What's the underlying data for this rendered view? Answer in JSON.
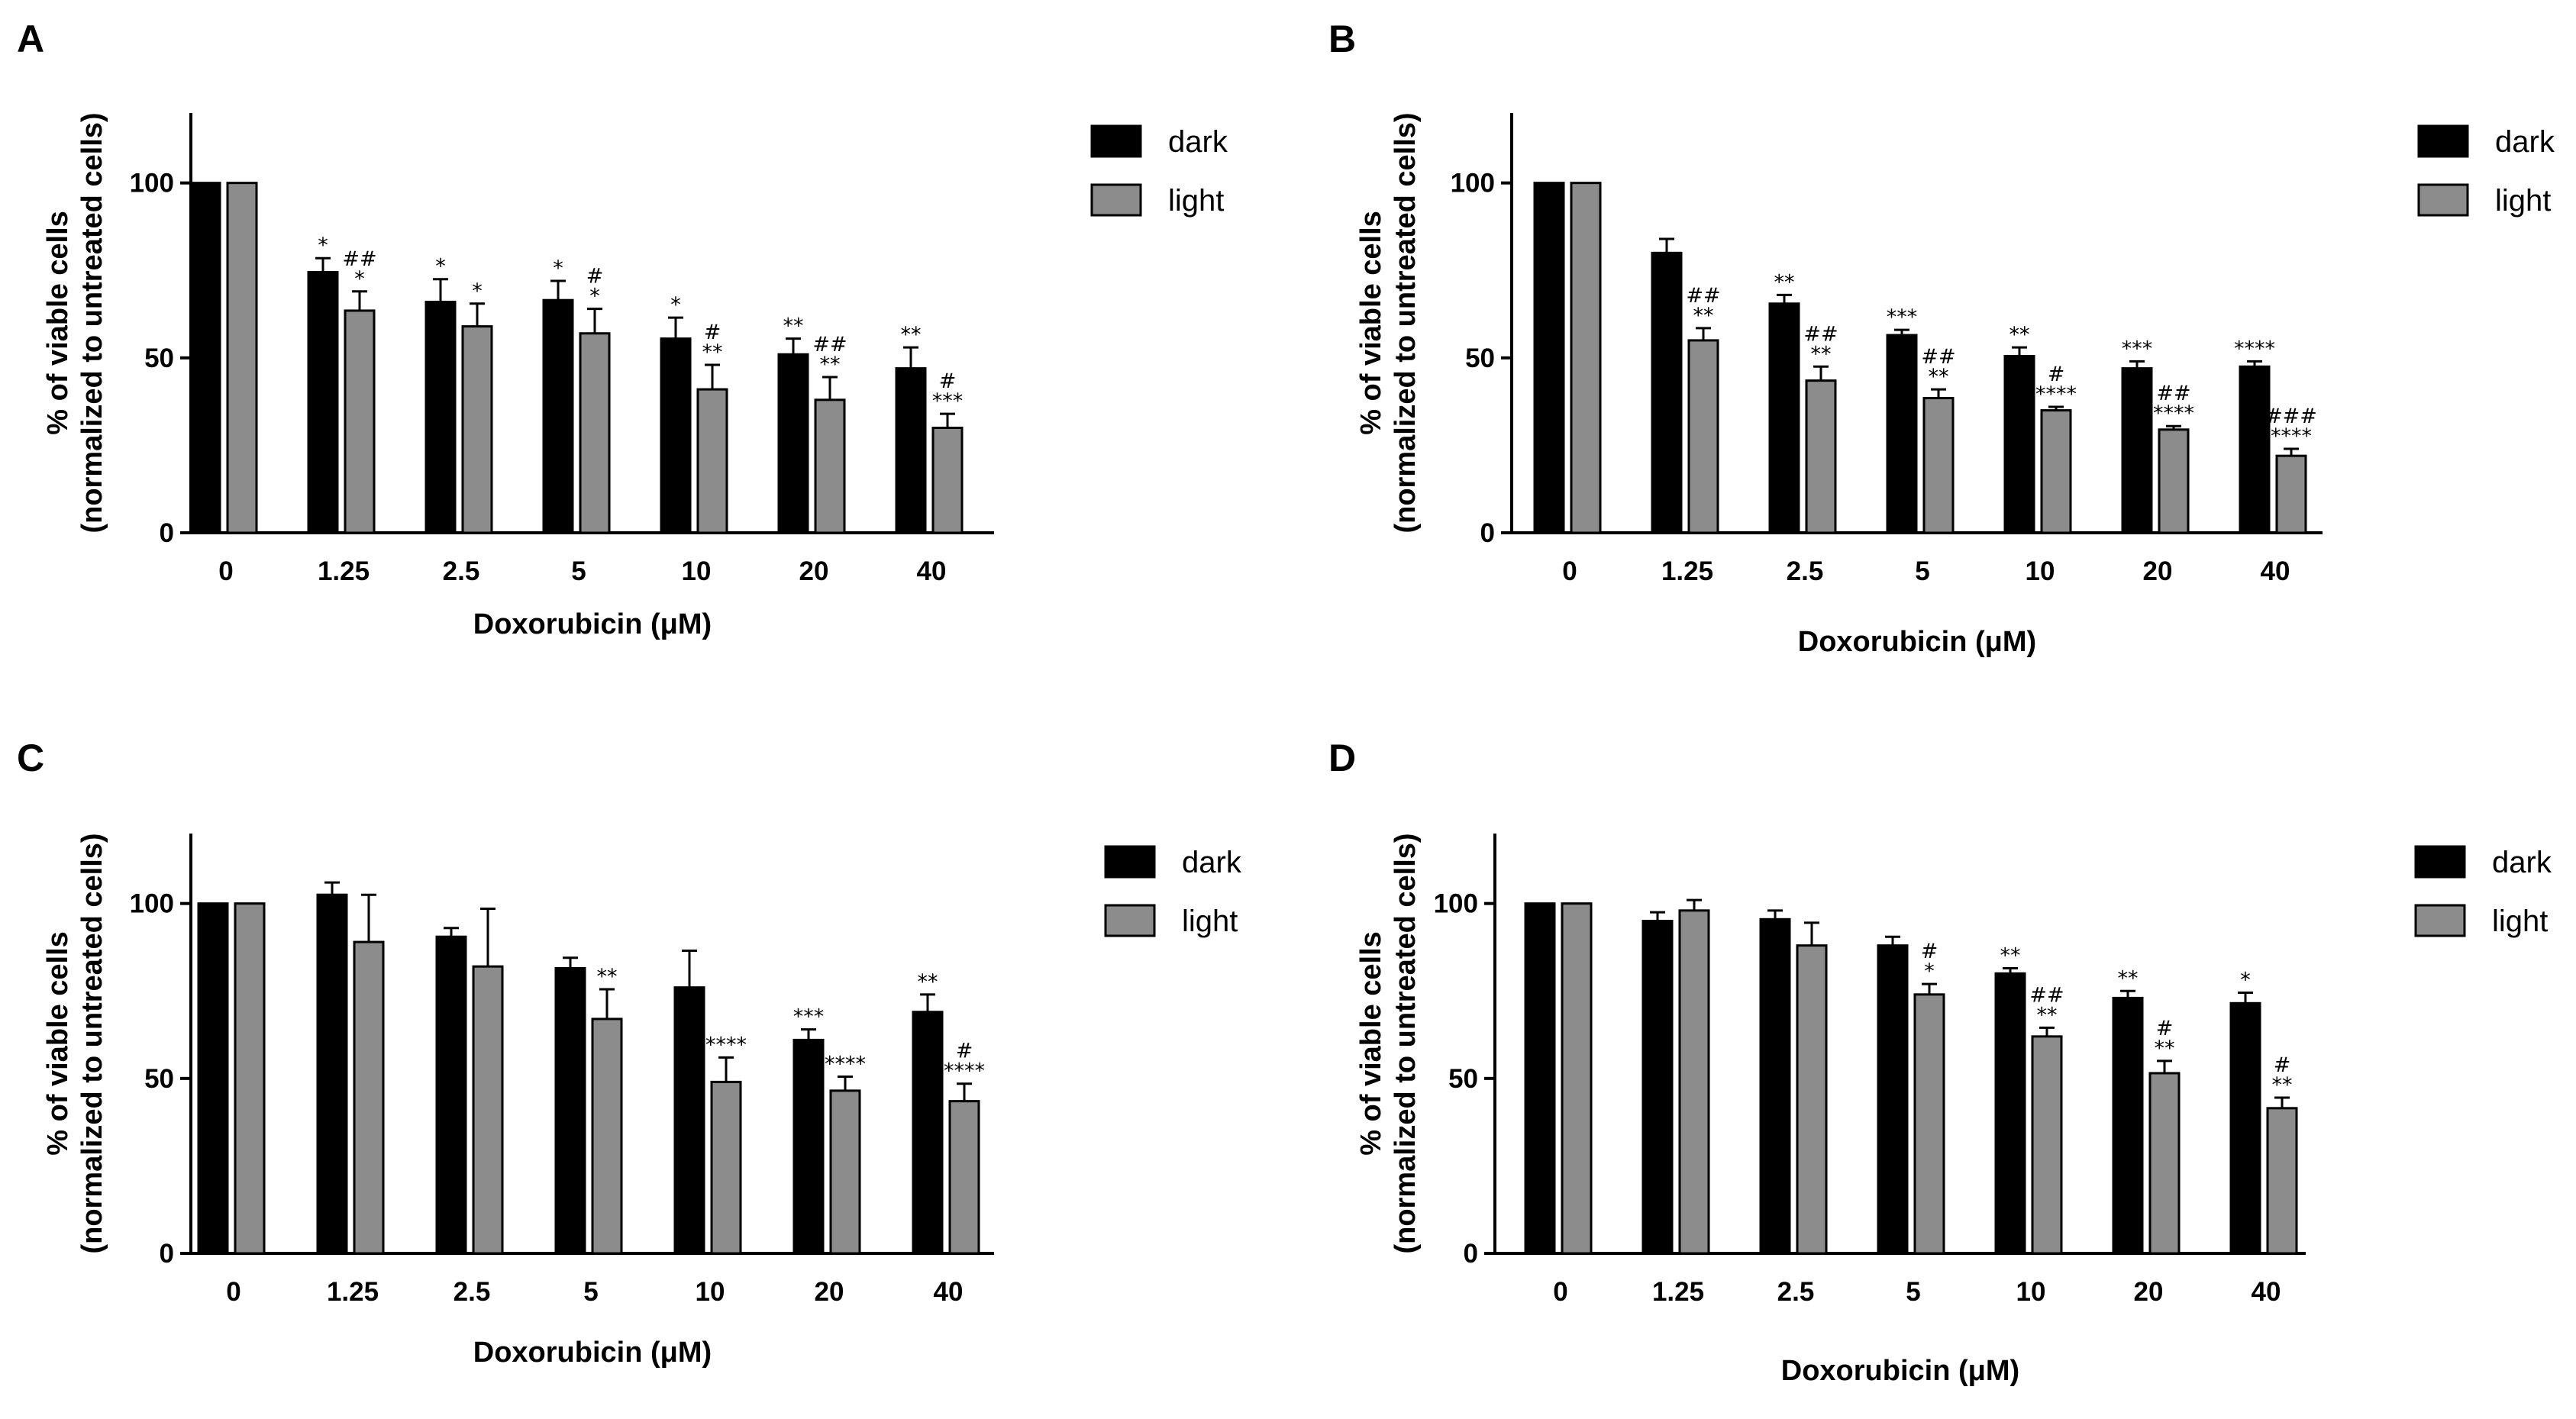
{
  "figure": {
    "colors": {
      "dark": "#000000",
      "light": "#8c8c8c",
      "axis": "#000000"
    }
  },
  "chart_data": [
    {
      "panel": "A",
      "type": "bar",
      "xlabel": "Doxorubicin (μM)",
      "ylabel": "% of viable cells",
      "ylabel2": "(normalized to untreated cells)",
      "ylim": [
        0,
        120
      ],
      "yticks": [
        0,
        50,
        100
      ],
      "categories": [
        "0",
        "1.25",
        "2.5",
        "5",
        "10",
        "20",
        "40"
      ],
      "legend": {
        "position": "top-right"
      },
      "series": [
        {
          "name": "dark",
          "values": [
            100,
            74.5,
            66,
            66.5,
            55.5,
            51,
            47
          ],
          "errors": [
            0,
            4,
            6.5,
            5.5,
            6,
            4.5,
            6
          ],
          "annotations": [
            [],
            [
              "*"
            ],
            [
              "*"
            ],
            [
              "*"
            ],
            [
              "*"
            ],
            [
              "**"
            ],
            [
              "**"
            ]
          ]
        },
        {
          "name": "light",
          "values": [
            100,
            63.5,
            59,
            57,
            41,
            38,
            30
          ],
          "errors": [
            0,
            5.5,
            6.5,
            7,
            7,
            6.5,
            4
          ],
          "annotations": [
            [],
            [
              "##",
              "*"
            ],
            [
              "*"
            ],
            [
              "#",
              "*"
            ],
            [
              "#",
              "**"
            ],
            [
              "##",
              "**"
            ],
            [
              "#",
              "***"
            ]
          ]
        }
      ]
    },
    {
      "panel": "B",
      "type": "bar",
      "xlabel": "Doxorubicin (μM)",
      "ylabel": "% of viable cells",
      "ylabel2": "(normalized to untreated cells)",
      "ylim": [
        0,
        120
      ],
      "yticks": [
        0,
        50,
        100
      ],
      "categories": [
        "0",
        "1.25",
        "2.5",
        "5",
        "10",
        "20",
        "40"
      ],
      "legend": {
        "position": "top-right"
      },
      "series": [
        {
          "name": "dark",
          "values": [
            100,
            80,
            65.5,
            56.5,
            50.5,
            47,
            47.5
          ],
          "errors": [
            0,
            4,
            2.5,
            1.5,
            2.5,
            2,
            1.5
          ],
          "annotations": [
            [],
            [],
            [
              "**"
            ],
            [
              "***"
            ],
            [
              "**"
            ],
            [
              "***"
            ],
            [
              "****"
            ]
          ]
        },
        {
          "name": "light",
          "values": [
            100,
            55,
            43.5,
            38.5,
            35,
            29.5,
            22
          ],
          "errors": [
            0,
            3.5,
            4,
            2.5,
            1,
            1,
            2
          ],
          "annotations": [
            [],
            [
              "##",
              "**"
            ],
            [
              "##",
              "**"
            ],
            [
              "##",
              "**"
            ],
            [
              "#",
              "****"
            ],
            [
              "##",
              "****"
            ],
            [
              "###",
              "****"
            ]
          ]
        }
      ]
    },
    {
      "panel": "C",
      "type": "bar",
      "xlabel": "Doxorubicin (μM)",
      "ylabel": "% of viable cells",
      "ylabel2": "(normalized to untreated cells)",
      "ylim": [
        0,
        120
      ],
      "yticks": [
        0,
        50,
        100
      ],
      "categories": [
        "0",
        "1.25",
        "2.5",
        "5",
        "10",
        "20",
        "40"
      ],
      "legend": {
        "position": "top-right"
      },
      "series": [
        {
          "name": "dark",
          "values": [
            100,
            102.5,
            90.5,
            81.5,
            76,
            61,
            69
          ],
          "errors": [
            0,
            3.5,
            2.5,
            3,
            10.5,
            3,
            5
          ],
          "annotations": [
            [],
            [],
            [],
            [],
            [],
            [
              "***"
            ],
            [
              "**"
            ]
          ]
        },
        {
          "name": "light",
          "values": [
            100,
            89,
            82,
            67,
            49,
            46.5,
            43.5
          ],
          "errors": [
            0,
            13.5,
            16.5,
            8.5,
            7,
            4,
            5
          ],
          "annotations": [
            [],
            [],
            [],
            [
              "**"
            ],
            [
              "****"
            ],
            [
              "****"
            ],
            [
              "#",
              "****"
            ]
          ]
        }
      ]
    },
    {
      "panel": "D",
      "type": "bar",
      "xlabel": "Doxorubicin (μM)",
      "ylabel": "% of viable cells",
      "ylabel2": "(normalized to untreated cells)",
      "ylim": [
        0,
        120
      ],
      "yticks": [
        0,
        50,
        100
      ],
      "categories": [
        "0",
        "1.25",
        "2.5",
        "5",
        "10",
        "20",
        "40"
      ],
      "legend": {
        "position": "top-right"
      },
      "series": [
        {
          "name": "dark",
          "values": [
            100,
            95,
            95.5,
            88,
            80,
            73,
            71.5
          ],
          "errors": [
            0,
            2.5,
            2.5,
            2.5,
            1.5,
            2,
            3
          ],
          "annotations": [
            [],
            [],
            [],
            [],
            [
              "**"
            ],
            [
              "**"
            ],
            [
              "*"
            ]
          ]
        },
        {
          "name": "light",
          "values": [
            100,
            98,
            88,
            74,
            62,
            51.5,
            41.5
          ],
          "errors": [
            0,
            3,
            6.5,
            3,
            2.5,
            3.5,
            3
          ],
          "annotations": [
            [],
            [],
            [],
            [
              "#",
              "*"
            ],
            [
              "##",
              "**"
            ],
            [
              "#",
              "**"
            ],
            [
              "#",
              "**"
            ]
          ]
        }
      ]
    }
  ]
}
